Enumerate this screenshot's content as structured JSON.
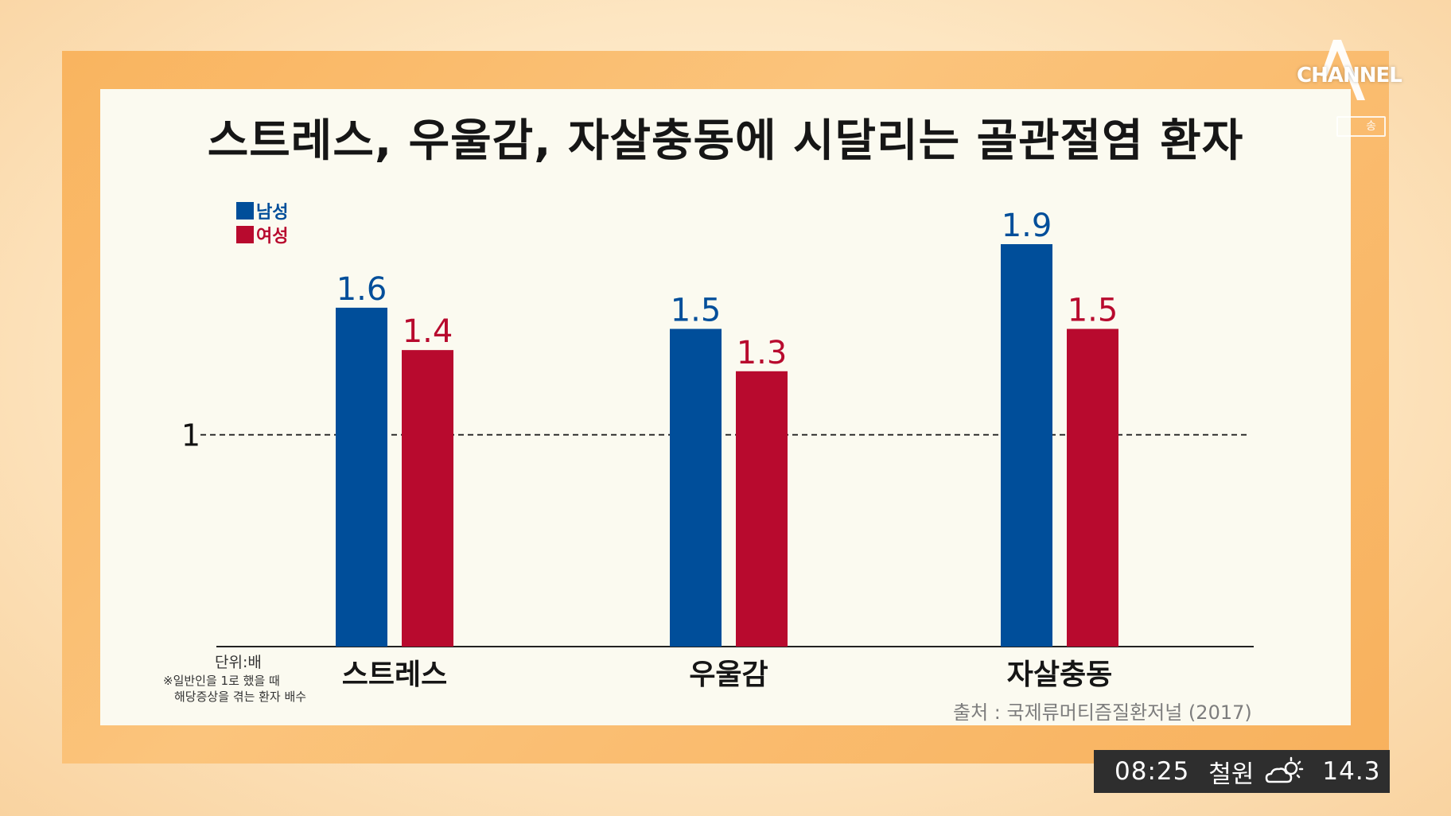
{
  "title": "스트레스, 우울감, 자살충동에 시달리는 골관절염 환자",
  "legend": [
    {
      "label": "남성",
      "color": "#004e9a"
    },
    {
      "label": "여성",
      "color": "#b80a2e"
    }
  ],
  "unit_label": "단위:배",
  "unit_note": [
    "※일반인을 1로 했을 때",
    "해당증상을 겪는 환자 배수"
  ],
  "source": "출처 : 국제류머티즘질환저널 (2017)",
  "broadcaster": {
    "logo_text": "CHANNEL",
    "logo_icon": "channel-a-logo-icon",
    "live_badge": "송"
  },
  "ticker": {
    "time": "08:25",
    "location": "철원",
    "weather_icon": "partly-cloudy-icon",
    "temperature": "14.3"
  },
  "chart_data": {
    "type": "bar",
    "title": "스트레스, 우울감, 자살충동에 시달리는 골관절염 환자",
    "categories": [
      "스트레스",
      "우울감",
      "자살충동"
    ],
    "series": [
      {
        "name": "남성",
        "color": "#004e9a",
        "values": [
          1.6,
          1.5,
          1.9
        ],
        "labels": [
          "1.6",
          "1.5",
          "1.9"
        ]
      },
      {
        "name": "여성",
        "color": "#b80a2e",
        "values": [
          1.4,
          1.3,
          1.5
        ],
        "labels": [
          "1.4",
          "1.3",
          "1.5"
        ]
      }
    ],
    "reference_line": {
      "value": 1,
      "label": "1",
      "style": "dashed"
    },
    "ylim": [
      0,
      1.95
    ],
    "xlabel": "",
    "ylabel": "",
    "grid": false,
    "legend_position": "top-left",
    "unit": "단위:배"
  }
}
